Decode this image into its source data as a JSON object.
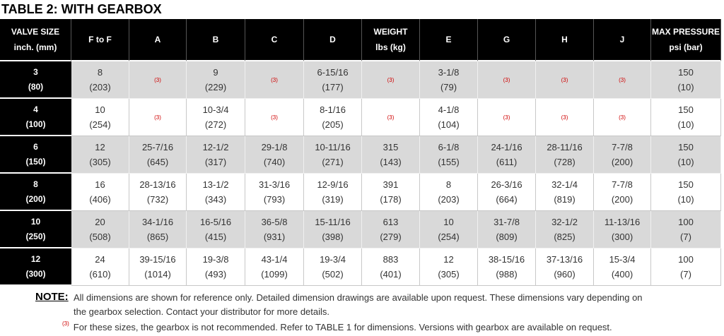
{
  "title": "TABLE 2: WITH GEARBOX",
  "table": {
    "header": [
      [
        "VALVE SIZE",
        "inch. (mm)"
      ],
      [
        "F to F"
      ],
      [
        "A"
      ],
      [
        "B"
      ],
      [
        "C"
      ],
      [
        "D"
      ],
      [
        "WEIGHT",
        "lbs (kg)"
      ],
      [
        "E"
      ],
      [
        "G"
      ],
      [
        "H"
      ],
      [
        "J"
      ],
      [
        "MAX PRESSURE",
        "psi (bar)"
      ]
    ],
    "rows": [
      [
        [
          "3",
          "(80)"
        ],
        [
          "8",
          "(203)"
        ],
        [
          "(3)"
        ],
        [
          "9",
          "(229)"
        ],
        [
          "(3)"
        ],
        [
          "6-15/16",
          "(177)"
        ],
        [
          "(3)"
        ],
        [
          "3-1/8",
          "(79)"
        ],
        [
          "(3)"
        ],
        [
          "(3)"
        ],
        [
          "(3)"
        ],
        [
          "150",
          "(10)"
        ]
      ],
      [
        [
          "4",
          "(100)"
        ],
        [
          "10",
          "(254)"
        ],
        [
          "(3)"
        ],
        [
          "10-3/4",
          "(272)"
        ],
        [
          "(3)"
        ],
        [
          "8-1/16",
          "(205)"
        ],
        [
          "(3)"
        ],
        [
          "4-1/8",
          "(104)"
        ],
        [
          "(3)"
        ],
        [
          "(3)"
        ],
        [
          "(3)"
        ],
        [
          "150",
          "(10)"
        ]
      ],
      [
        [
          "6",
          "(150)"
        ],
        [
          "12",
          "(305)"
        ],
        [
          "25-7/16",
          "(645)"
        ],
        [
          "12-1/2",
          "(317)"
        ],
        [
          "29-1/8",
          "(740)"
        ],
        [
          "10-11/16",
          "(271)"
        ],
        [
          "315",
          "(143)"
        ],
        [
          "6-1/8",
          "(155)"
        ],
        [
          "24-1/16",
          "(611)"
        ],
        [
          "28-11/16",
          "(728)"
        ],
        [
          "7-7/8",
          "(200)"
        ],
        [
          "150",
          "(10)"
        ]
      ],
      [
        [
          "8",
          "(200)"
        ],
        [
          "16",
          "(406)"
        ],
        [
          "28-13/16",
          "(732)"
        ],
        [
          "13-1/2",
          "(343)"
        ],
        [
          "31-3/16",
          "(793)"
        ],
        [
          "12-9/16",
          "(319)"
        ],
        [
          "391",
          "(178)"
        ],
        [
          "8",
          "(203)"
        ],
        [
          "26-3/16",
          "(664)"
        ],
        [
          "32-1/4",
          "(819)"
        ],
        [
          "7-7/8",
          "(200)"
        ],
        [
          "150",
          "(10)"
        ]
      ],
      [
        [
          "10",
          "(250)"
        ],
        [
          "20",
          "(508)"
        ],
        [
          "34-1/16",
          "(865)"
        ],
        [
          "16-5/16",
          "(415)"
        ],
        [
          "36-5/8",
          "(931)"
        ],
        [
          "15-11/16",
          "(398)"
        ],
        [
          "613",
          "(279)"
        ],
        [
          "10",
          "(254)"
        ],
        [
          "31-7/8",
          "(809)"
        ],
        [
          "32-1/2",
          "(825)"
        ],
        [
          "11-13/16",
          "(300)"
        ],
        [
          "100",
          "(7)"
        ]
      ],
      [
        [
          "12",
          "(300)"
        ],
        [
          "24",
          "(610)"
        ],
        [
          "39-15/16",
          "(1014)"
        ],
        [
          "19-3/8",
          "(493)"
        ],
        [
          "43-1/4",
          "(1099)"
        ],
        [
          "19-3/4",
          "(502)"
        ],
        [
          "883",
          "(401)"
        ],
        [
          "12",
          "(305)"
        ],
        [
          "38-15/16",
          "(988)"
        ],
        [
          "37-13/16",
          "(960)"
        ],
        [
          "15-3/4",
          "(400)"
        ],
        [
          "100",
          "(7)"
        ]
      ]
    ]
  },
  "note": {
    "label": "NOTE:",
    "text": [
      "All dimensions are shown for reference only. Detailed dimension drawings are available upon request. These dimensions vary depending on",
      "the gearbox selection. Contact your distributor for more details."
    ]
  },
  "footnote": {
    "marker": "(3)",
    "text": "For these sizes, the gearbox is not recommended. Refer to TABLE 1 for dimensions. Versions with gearbox are available on request."
  }
}
